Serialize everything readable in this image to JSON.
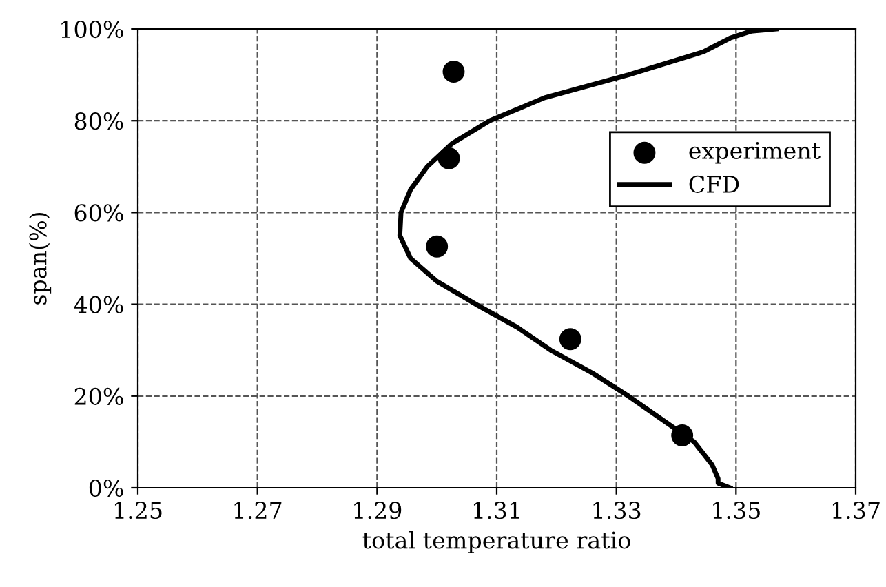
{
  "chart_data": {
    "type": "scatter",
    "xlabel": "total temperature ratio",
    "ylabel": "span(%)",
    "xlim": [
      1.25,
      1.37
    ],
    "xticks": [
      1.25,
      1.27,
      1.29,
      1.31,
      1.33,
      1.35,
      1.37
    ],
    "ylim": [
      0,
      100
    ],
    "yticks": [
      {
        "value": 0,
        "label": "0%"
      },
      {
        "value": 20,
        "label": "20%"
      },
      {
        "value": 40,
        "label": "40%"
      },
      {
        "value": 60,
        "label": "60%"
      },
      {
        "value": 80,
        "label": "80%"
      },
      {
        "value": 100,
        "label": "100%"
      }
    ],
    "grid": true,
    "legend": "top right",
    "series": [
      {
        "name": "experiment",
        "marker": "circle",
        "color": "#000000",
        "x": [
          1.3028,
          1.302,
          1.3,
          1.3223,
          1.341
        ],
        "values": [
          90.7,
          71.8,
          52.6,
          32.4,
          11.4
        ]
      },
      {
        "name": "CFD",
        "type": "line",
        "marker": "none",
        "line_style": "solid",
        "color": "#000000",
        "x": [
          1.349,
          1.347,
          1.347,
          1.346,
          1.343,
          1.3375,
          1.332,
          1.326,
          1.319,
          1.3134,
          1.3065,
          1.3,
          1.2956,
          1.2938,
          1.294,
          1.2956,
          1.2984,
          1.3025,
          1.3088,
          1.318,
          1.332,
          1.3445,
          1.349,
          1.3525,
          1.3567
        ],
        "values": [
          0,
          1,
          2,
          5,
          10,
          15,
          20,
          25,
          30,
          35,
          40,
          45,
          50,
          55,
          60,
          65,
          70,
          75,
          80,
          85,
          90,
          95,
          98,
          99.5,
          100
        ]
      }
    ]
  }
}
